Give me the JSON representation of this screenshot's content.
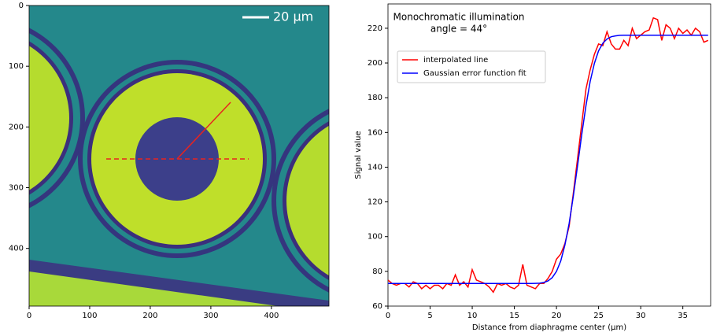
{
  "chart_data": [
    {
      "type": "image",
      "annotation": "20 µm",
      "xlim": [
        0,
        495
      ],
      "ylim": [
        495,
        0
      ],
      "xticks": [
        0,
        100,
        200,
        300,
        400
      ],
      "yticks": [
        0,
        100,
        200,
        300,
        400
      ]
    },
    {
      "type": "line",
      "annotations": [
        "Monochromatic illumination",
        "angle = 44°"
      ],
      "xlabel": "Distance from diaphragme center (µm)",
      "ylabel": "Signal value",
      "legend": "upper left",
      "xlim": [
        0,
        38.3
      ],
      "ylim": [
        60,
        234
      ],
      "xticks": [
        0,
        5,
        10,
        15,
        20,
        25,
        30,
        35
      ],
      "yticks": [
        60,
        80,
        100,
        120,
        140,
        160,
        180,
        200,
        220
      ],
      "x": [
        0,
        0.5,
        1,
        1.5,
        2,
        2.5,
        3,
        3.5,
        4,
        4.5,
        5,
        5.5,
        6,
        6.5,
        7,
        7.5,
        8,
        8.5,
        9,
        9.5,
        10,
        10.5,
        11,
        11.5,
        12,
        12.5,
        13,
        13.5,
        14,
        14.5,
        15,
        15.5,
        16,
        16.5,
        17,
        17.5,
        18,
        18.5,
        19,
        19.5,
        20,
        20.5,
        21,
        21.5,
        22,
        22.5,
        23,
        23.5,
        24,
        24.5,
        25,
        25.5,
        26,
        26.5,
        27,
        27.5,
        28,
        28.5,
        29,
        29.5,
        30,
        30.5,
        31,
        31.5,
        32,
        32.5,
        33,
        33.5,
        34,
        34.5,
        35,
        35.5,
        36,
        36.5,
        37,
        37.5,
        38
      ],
      "series": [
        {
          "name": "interpolated line",
          "color": "#ff0000",
          "values": [
            75,
            73,
            72,
            73,
            73,
            71,
            74,
            73,
            70,
            72,
            70,
            72,
            72,
            70,
            73,
            72,
            78,
            72,
            74,
            71,
            81,
            75,
            74,
            73,
            71,
            68,
            73,
            72,
            73,
            71,
            70,
            72,
            84,
            72,
            71,
            70,
            73,
            73,
            76,
            80,
            87,
            90,
            96,
            106,
            125,
            145,
            165,
            185,
            196,
            205,
            211,
            210,
            218,
            211,
            208,
            208,
            213,
            210,
            220,
            214,
            216,
            218,
            219,
            226,
            225,
            213,
            222,
            220,
            214,
            220,
            217,
            219,
            216,
            220,
            218,
            212,
            213
          ]
        },
        {
          "name": "Gaussian error function fit",
          "color": "#0000ff",
          "values": [
            73,
            73,
            73,
            73,
            73,
            73,
            73,
            73,
            73,
            73,
            73,
            73,
            73,
            73,
            73,
            73,
            73,
            73,
            73,
            73,
            73,
            73,
            73,
            73,
            73,
            73,
            73,
            73,
            73,
            73,
            73,
            73,
            73,
            73,
            73,
            73.1,
            73.2,
            73.6,
            74.5,
            76.4,
            80,
            85.9,
            95.1,
            107.6,
            123.3,
            140.9,
            158.8,
            175.5,
            189.3,
            199.8,
            207,
            211.4,
            213.8,
            215.1,
            215.6,
            215.9,
            216,
            216,
            216,
            216,
            216,
            216,
            216,
            216,
            216,
            216,
            216,
            216,
            216,
            216,
            216,
            216,
            216,
            216,
            216,
            216,
            216
          ]
        }
      ]
    }
  ]
}
